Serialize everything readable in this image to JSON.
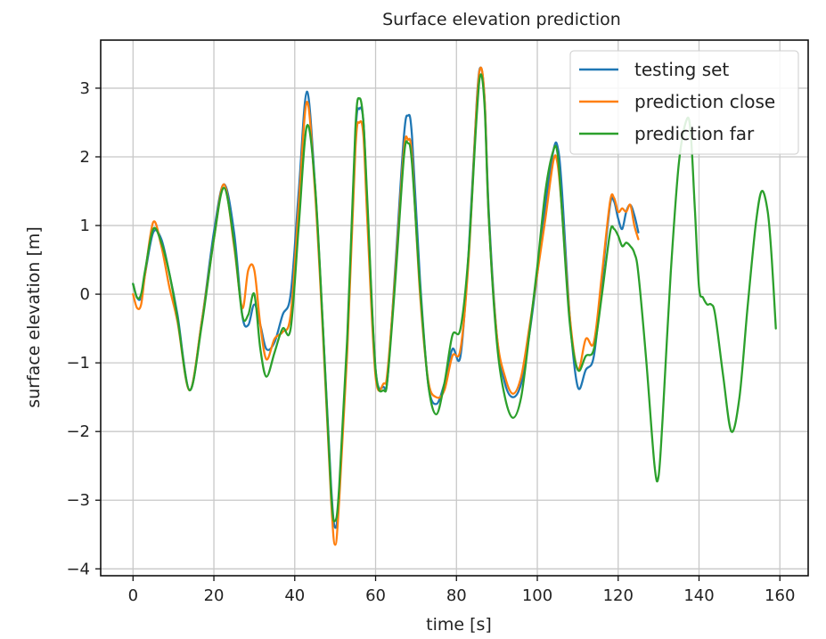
{
  "chart_data": {
    "type": "line",
    "title": "Surface elevation prediction",
    "xlabel": "time [s]",
    "ylabel": "surface elevation [m]",
    "xlim": [
      -8,
      167
    ],
    "ylim": [
      -4.1,
      3.7
    ],
    "xticks": [
      0,
      20,
      40,
      60,
      80,
      100,
      120,
      140,
      160
    ],
    "yticks": [
      -4,
      -3,
      -2,
      -1,
      0,
      1,
      2,
      3
    ],
    "xtick_labels": [
      "0",
      "20",
      "40",
      "60",
      "80",
      "100",
      "120",
      "140",
      "160"
    ],
    "ytick_labels": [
      "−4",
      "−3",
      "−2",
      "−1",
      "0",
      "1",
      "2",
      "3"
    ],
    "grid": true,
    "legend_position": "top-right",
    "series": [
      {
        "name": "testing set",
        "color": "#1f77b4",
        "x": [
          0,
          1,
          2,
          3,
          5,
          7,
          9,
          11,
          14,
          17,
          20,
          22.5,
          25,
          27,
          28.5,
          30,
          31.5,
          33,
          35,
          37,
          39,
          41,
          43,
          45,
          47,
          49,
          50,
          51,
          53,
          55,
          56,
          57,
          58,
          60,
          62,
          63,
          65,
          67,
          68,
          69,
          71,
          73,
          75,
          77,
          79,
          81,
          83,
          85,
          86,
          87,
          88,
          90,
          92,
          94,
          96,
          98,
          100,
          102,
          104,
          105,
          106,
          108,
          110,
          112,
          114,
          116,
          118,
          119,
          120,
          121,
          122,
          123,
          124,
          125
        ],
        "y": [
          0.15,
          -0.05,
          -0.05,
          0.3,
          0.9,
          0.8,
          0.3,
          -0.3,
          -1.4,
          -0.4,
          0.9,
          1.6,
          0.9,
          -0.3,
          -0.45,
          -0.15,
          -0.45,
          -0.8,
          -0.7,
          -0.3,
          0.0,
          1.5,
          2.95,
          1.6,
          -0.5,
          -2.8,
          -3.4,
          -2.9,
          -0.7,
          2.3,
          2.7,
          2.5,
          1.2,
          -1.1,
          -1.35,
          -1.2,
          0.5,
          2.3,
          2.6,
          2.3,
          0.2,
          -1.3,
          -1.6,
          -1.3,
          -0.8,
          -0.9,
          0.6,
          2.8,
          3.3,
          2.8,
          1.2,
          -0.6,
          -1.3,
          -1.5,
          -1.3,
          -0.6,
          0.3,
          1.3,
          2.1,
          2.15,
          1.6,
          -0.3,
          -1.35,
          -1.1,
          -0.9,
          0.2,
          1.3,
          1.35,
          1.1,
          0.95,
          1.2,
          1.3,
          1.15,
          0.9
        ]
      },
      {
        "name": "prediction close",
        "color": "#ff7f0e",
        "x": [
          0,
          1,
          2,
          3,
          5,
          7,
          9,
          11,
          14,
          17,
          20,
          22.5,
          25,
          27,
          28.5,
          30,
          31.5,
          33,
          35,
          37,
          39,
          41,
          43,
          45,
          47,
          49,
          50,
          51,
          53,
          55,
          56,
          57,
          58,
          60,
          62,
          63,
          65,
          67,
          68,
          69,
          71,
          73,
          75,
          77,
          79,
          81,
          83,
          85,
          86,
          87,
          88,
          90,
          92,
          94,
          96,
          98,
          100,
          102,
          104,
          105,
          106,
          108,
          110,
          112,
          114,
          116,
          118,
          119,
          120,
          121,
          122,
          123,
          124,
          125
        ],
        "y": [
          0.0,
          -0.2,
          -0.15,
          0.3,
          1.05,
          0.7,
          0.1,
          -0.4,
          -1.4,
          -0.4,
          0.8,
          1.6,
          0.7,
          -0.2,
          0.35,
          0.35,
          -0.45,
          -0.95,
          -0.65,
          -0.55,
          -0.3,
          1.3,
          2.8,
          1.5,
          -0.6,
          -3.0,
          -3.65,
          -3.0,
          -0.8,
          2.1,
          2.5,
          2.3,
          1.0,
          -1.2,
          -1.3,
          -1.1,
          0.4,
          2.1,
          2.25,
          2.0,
          0.0,
          -1.25,
          -1.5,
          -1.4,
          -0.9,
          -0.8,
          0.5,
          2.75,
          3.3,
          2.8,
          1.1,
          -0.6,
          -1.2,
          -1.45,
          -1.2,
          -0.5,
          0.3,
          1.1,
          1.95,
          1.9,
          1.3,
          -0.3,
          -1.1,
          -0.65,
          -0.7,
          0.3,
          1.35,
          1.4,
          1.2,
          1.25,
          1.2,
          1.3,
          1.0,
          0.8
        ]
      },
      {
        "name": "prediction far",
        "color": "#2ca02c",
        "x": [
          0,
          1,
          2,
          3,
          5,
          7,
          9,
          11,
          14,
          17,
          20,
          22.5,
          25,
          27,
          28.5,
          30,
          31.5,
          33,
          35,
          37,
          39,
          41,
          43,
          45,
          47,
          49,
          50,
          51,
          53,
          55,
          56,
          57,
          58,
          60,
          62,
          63,
          65,
          67,
          68,
          69,
          71,
          73,
          75,
          77,
          79,
          81,
          83,
          85,
          86,
          87,
          88,
          90,
          92,
          94,
          96,
          98,
          100,
          102,
          104,
          105,
          106,
          108,
          110,
          112,
          114,
          116,
          118,
          119,
          120,
          121,
          122,
          123,
          124,
          125,
          127,
          129,
          130,
          131,
          133,
          135,
          137,
          138,
          139,
          140,
          141,
          142,
          143,
          144,
          146,
          148,
          150,
          152,
          154,
          155.5,
          157,
          158,
          159
        ],
        "y": [
          0.15,
          -0.05,
          0.0,
          0.35,
          0.95,
          0.75,
          0.3,
          -0.35,
          -1.4,
          -0.45,
          0.8,
          1.55,
          0.75,
          -0.3,
          -0.3,
          0.0,
          -0.8,
          -1.2,
          -0.85,
          -0.5,
          -0.5,
          1.0,
          2.45,
          1.6,
          -0.5,
          -2.9,
          -3.3,
          -2.8,
          -0.6,
          2.4,
          2.85,
          2.5,
          1.3,
          -1.1,
          -1.4,
          -1.2,
          0.3,
          2.0,
          2.2,
          1.9,
          0.1,
          -1.3,
          -1.75,
          -1.3,
          -0.6,
          -0.5,
          0.6,
          2.6,
          3.2,
          2.7,
          1.1,
          -0.7,
          -1.5,
          -1.8,
          -1.5,
          -0.6,
          0.4,
          1.5,
          2.1,
          2.05,
          1.3,
          -0.4,
          -1.1,
          -0.9,
          -0.8,
          0.0,
          0.9,
          0.95,
          0.85,
          0.7,
          0.75,
          0.7,
          0.6,
          0.3,
          -1.0,
          -2.5,
          -2.65,
          -1.8,
          0.3,
          1.9,
          2.55,
          2.3,
          1.2,
          0.1,
          -0.05,
          -0.15,
          -0.15,
          -0.3,
          -1.2,
          -2.0,
          -1.5,
          -0.2,
          1.0,
          1.5,
          1.2,
          0.5,
          -0.5
        ]
      }
    ]
  }
}
